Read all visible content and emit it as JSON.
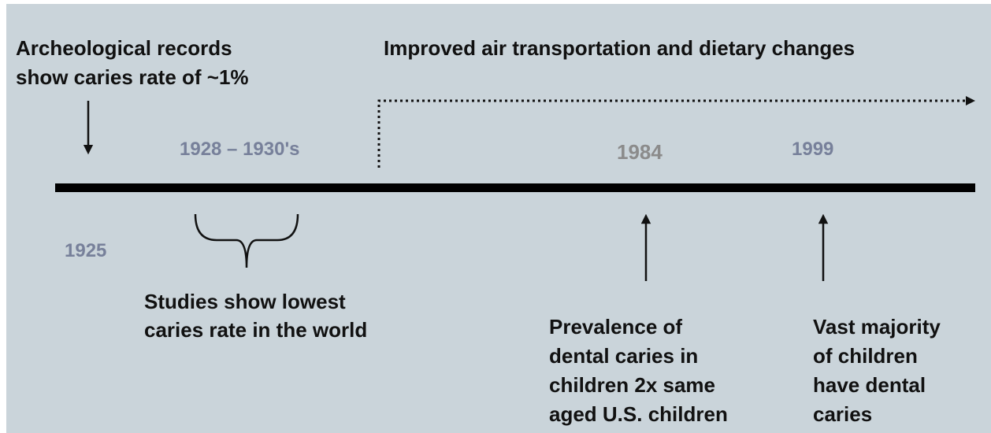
{
  "header": {
    "left_note": [
      "Archeological records",
      "show caries rate of ~1%"
    ],
    "right_note": "Improved air transportation and dietary changes"
  },
  "years": [
    "1925",
    "1928 – 1930's",
    "1984",
    "1999"
  ],
  "events": [
    {
      "label": [
        "Studies show lowest",
        "caries rate in the world"
      ]
    },
    {
      "label": [
        "Prevalence of",
        "dental caries in",
        "children  2x same",
        "aged U.S. children"
      ]
    },
    {
      "label": [
        "Vast majority",
        "of children",
        "have dental",
        "caries"
      ]
    }
  ]
}
